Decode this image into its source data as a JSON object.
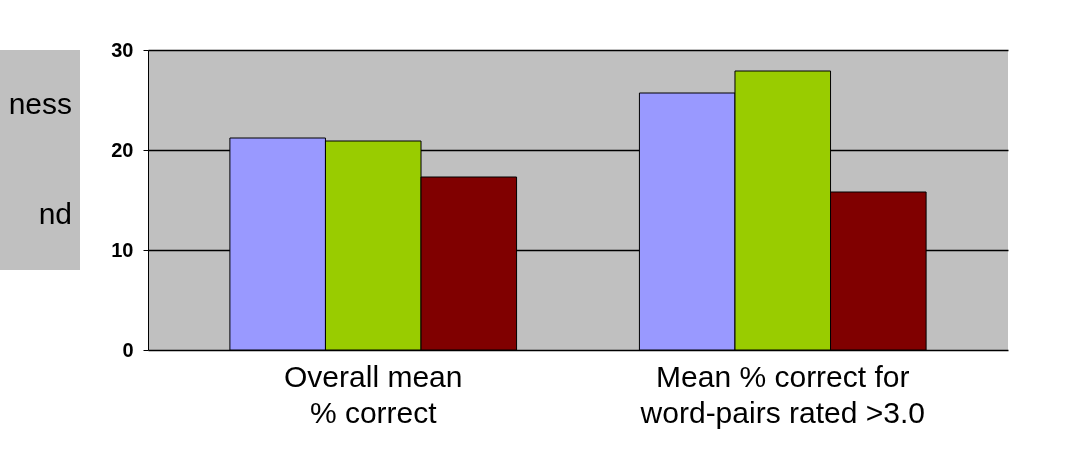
{
  "chart_data": {
    "type": "bar",
    "categories": [
      "Overall mean\n% correct",
      "Mean % correct for\nword-pairs rated >3.0"
    ],
    "series": [
      {
        "color": "#9999ff",
        "values": [
          21.2,
          25.7
        ]
      },
      {
        "color": "#99cc00",
        "values": [
          20.9,
          27.9
        ]
      },
      {
        "color": "#800000",
        "values": [
          17.3,
          15.8
        ]
      }
    ],
    "ylim": [
      0,
      30
    ],
    "yticks": [
      0,
      10,
      20,
      30
    ],
    "grid": "y",
    "legend": false,
    "annotations": [
      "ness",
      "nd"
    ]
  }
}
